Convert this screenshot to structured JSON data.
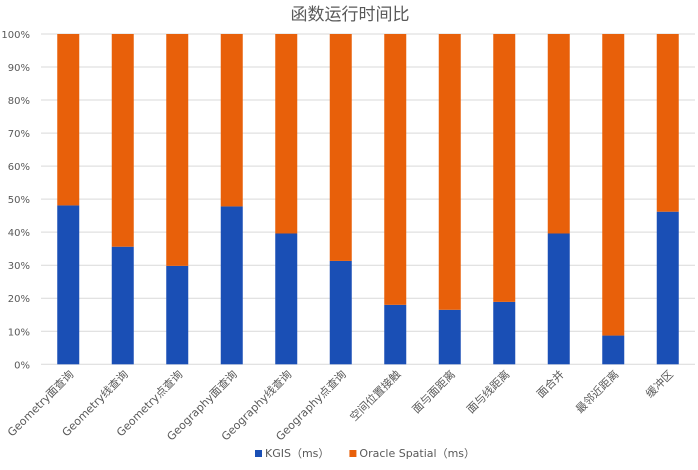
{
  "chart_data": {
    "type": "bar",
    "stacked": true,
    "percent_stacked": true,
    "title": "函数运行时间比",
    "xlabel": "",
    "ylabel": "",
    "ylim": [
      0,
      100
    ],
    "yticks": [
      "0%",
      "10%",
      "20%",
      "30%",
      "40%",
      "50%",
      "60%",
      "70%",
      "80%",
      "90%",
      "100%"
    ],
    "grid": true,
    "legend_placement": "bottom",
    "categories": [
      "Geometry面查询",
      "Geometry线查询",
      "Geometry点查询",
      "Geography面查询",
      "Geography线查询",
      "Geography点查询",
      "空间位置接触",
      "面与面距离",
      "面与线距离",
      "面合并",
      "最邻近距离",
      "缓冲区"
    ],
    "series": [
      {
        "name": "KGIS（ms）",
        "color": "#1a4fb5",
        "values": [
          48.1,
          35.6,
          29.8,
          47.8,
          39.6,
          31.3,
          18.0,
          16.5,
          18.9,
          39.6,
          8.7,
          46.2
        ]
      },
      {
        "name": "Oracle Spatial（ms）",
        "color": "#e8600a",
        "values": [
          51.9,
          64.4,
          70.2,
          52.2,
          60.4,
          68.7,
          82.0,
          83.5,
          81.1,
          60.4,
          91.3,
          53.8
        ]
      }
    ]
  }
}
